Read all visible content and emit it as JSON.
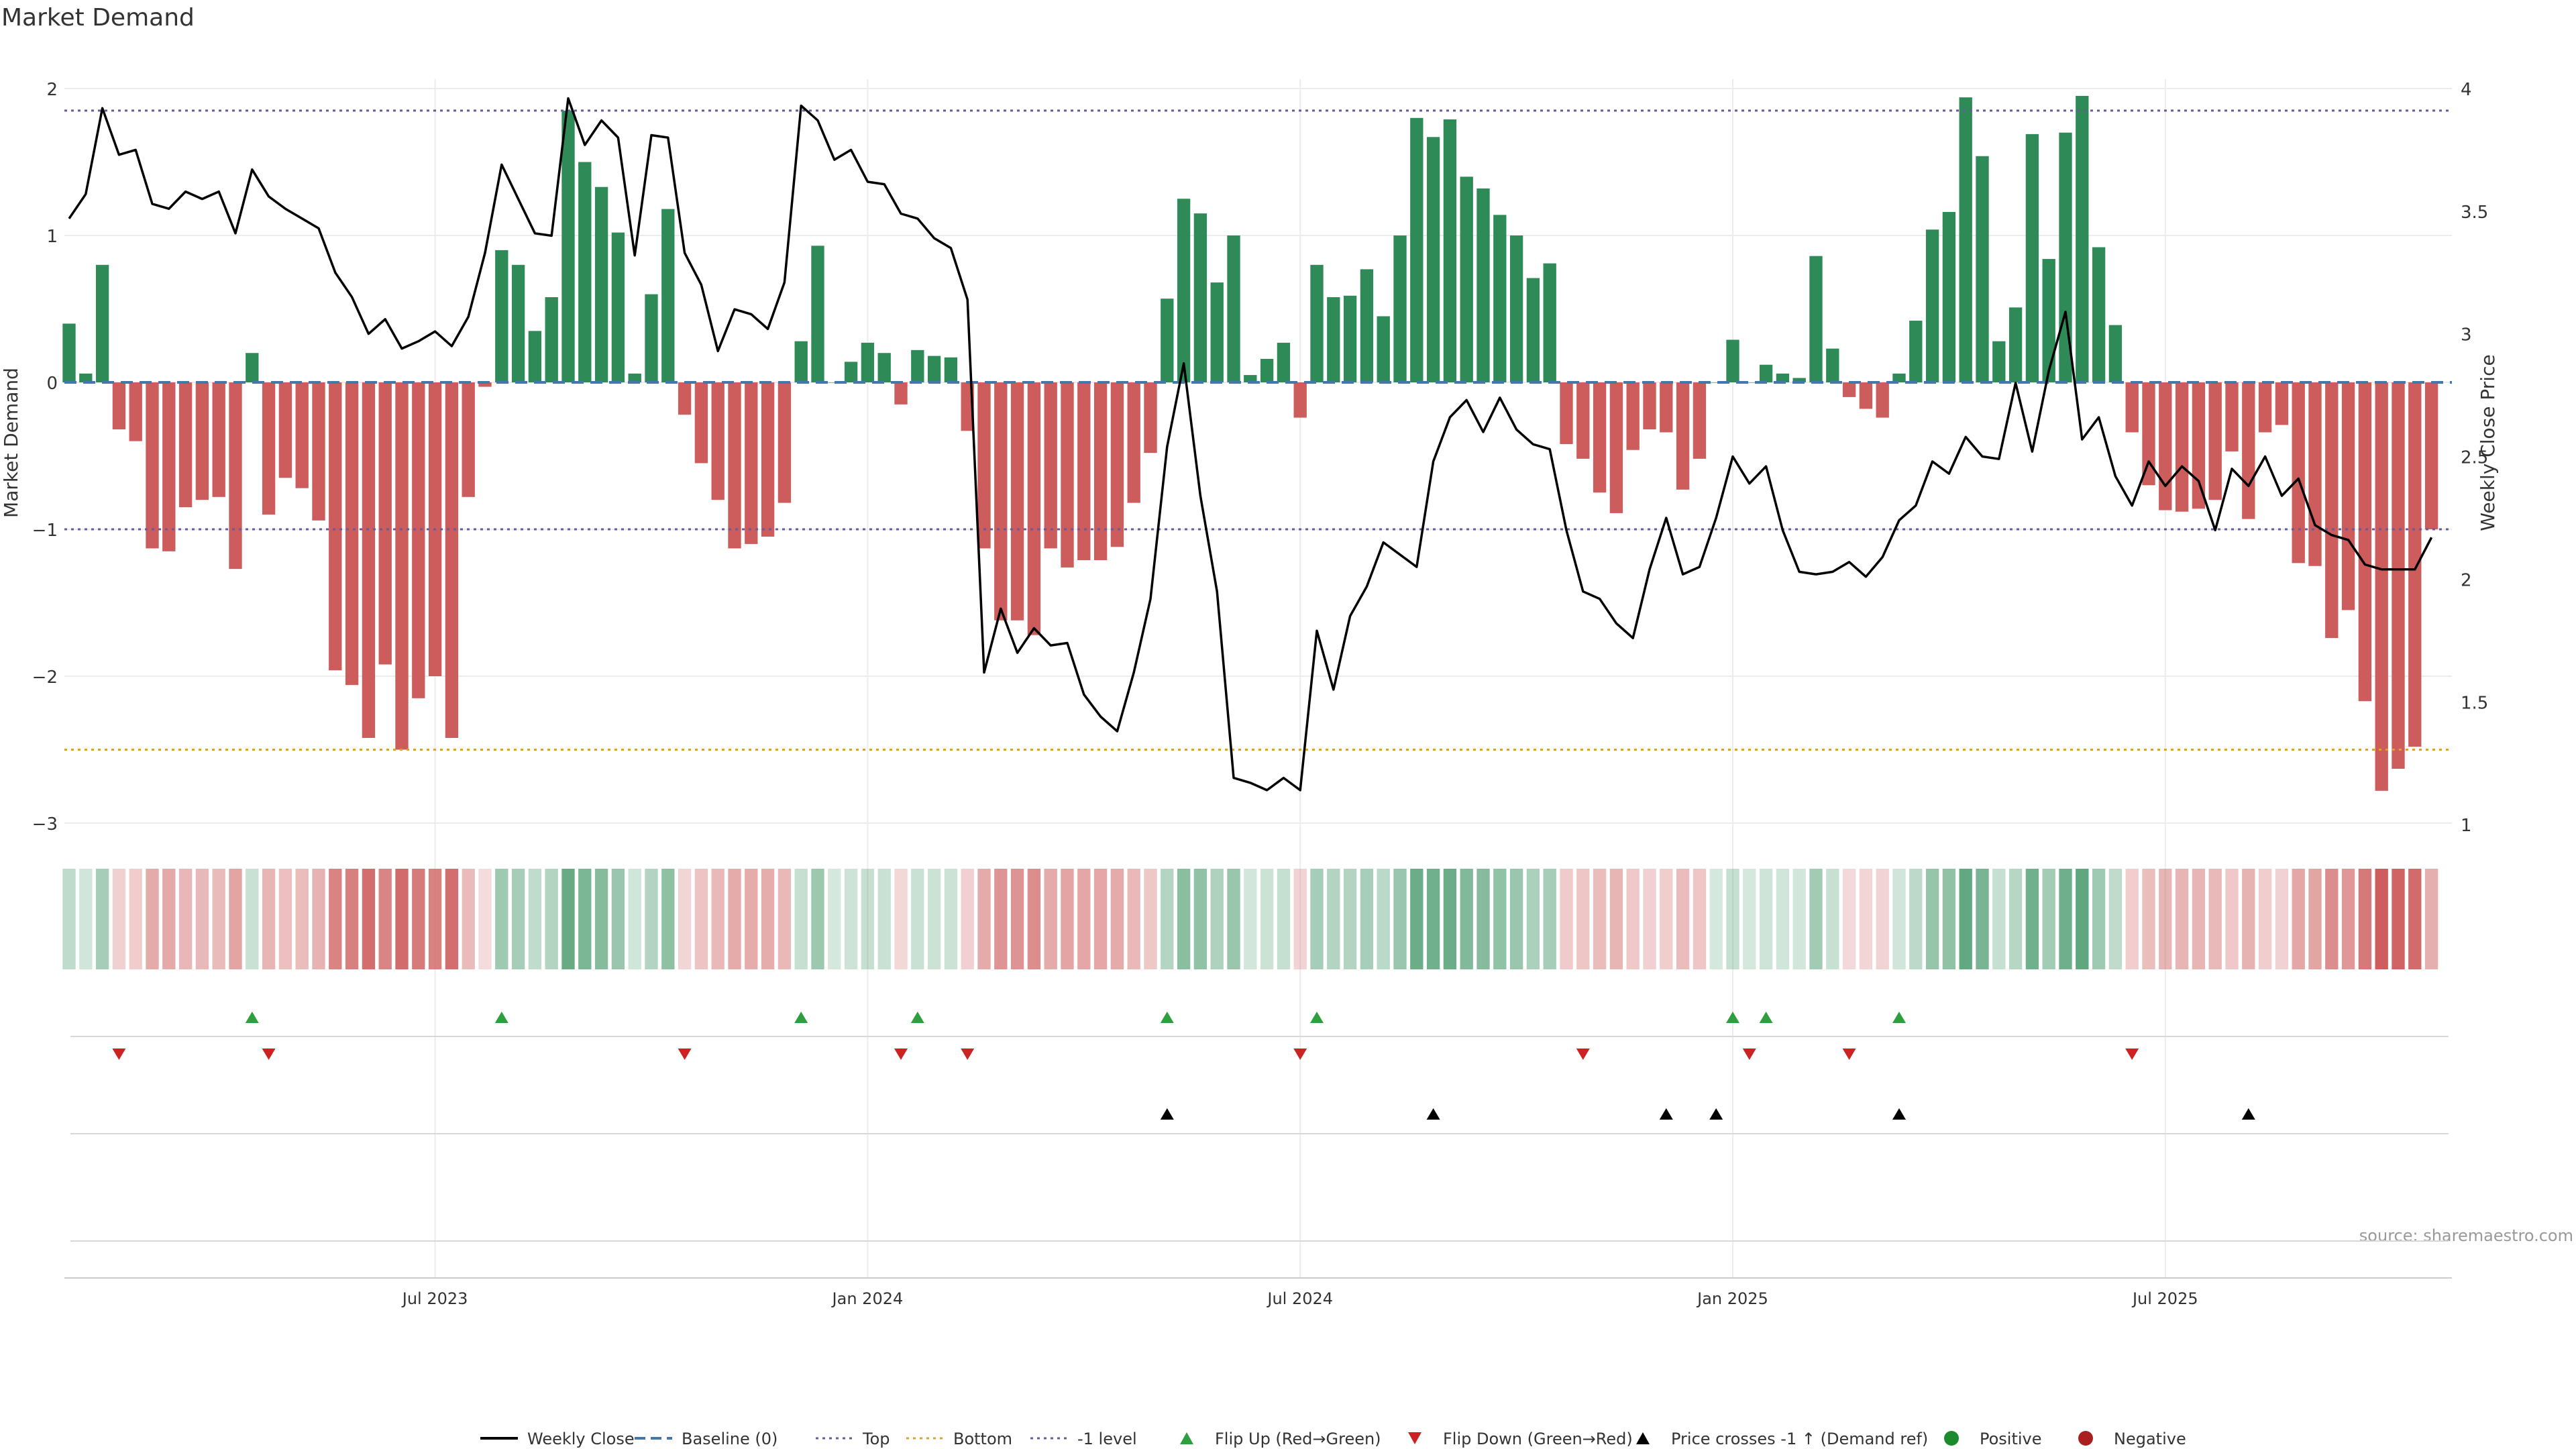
{
  "chart_data": {
    "type": "bar",
    "title": "Market Demand",
    "ylabel_left": "Market Demand",
    "ylabel_right": "Weekly Close Price",
    "ylim_left": [
      -3,
      2.2
    ],
    "ylim_right": [
      1,
      4
    ],
    "left_ticks": [
      2,
      1,
      0,
      -1,
      -2,
      -3
    ],
    "left_tick_labels": [
      "2",
      "1",
      "0",
      "−1",
      "−2",
      "−3"
    ],
    "right_ticks": [
      4,
      3.5,
      3,
      2.5,
      2,
      1.5,
      1
    ],
    "right_tick_labels": [
      "4",
      "3.5",
      "3",
      "2.5",
      "2",
      "1.5",
      "1"
    ],
    "x_tick_labels": [
      "Jul 2023",
      "Jan 2024",
      "Jul 2024",
      "Jan 2025",
      "Jul 2025"
    ],
    "x_tick_weeks": [
      22,
      48,
      74,
      100,
      126
    ],
    "reference_lines": {
      "top": 1.85,
      "baseline": 0,
      "minus_one": -1,
      "bottom": -2.5
    },
    "colors": {
      "positive": "#2e8b57",
      "negative": "#cd5c5c",
      "price": "#000000",
      "top": "#6a5a9a",
      "bottom": "#e0a030",
      "baseline": "#4477aa",
      "flip_up": "#2e9e3e",
      "flip_down": "#cc2222",
      "cross": "#000000",
      "pos_dot": "#1e8a2e",
      "neg_dot": "#aa2020"
    },
    "series": [
      {
        "name": "Market Demand",
        "values": [
          0.4,
          0.06,
          0.8,
          -0.32,
          -0.4,
          -1.13,
          -1.15,
          -0.85,
          -0.8,
          -0.78,
          -1.27,
          0.2,
          -0.9,
          -0.65,
          -0.72,
          -0.94,
          -1.96,
          -2.06,
          -2.42,
          -1.92,
          -2.5,
          -2.15,
          -2.0,
          -2.42,
          -0.78,
          -0.03,
          0.9,
          0.8,
          0.35,
          0.58,
          1.85,
          1.5,
          1.33,
          1.02,
          0.06,
          0.6,
          1.18,
          -0.22,
          -0.55,
          -0.8,
          -1.13,
          -1.1,
          -1.05,
          -0.82,
          0.28,
          0.93,
          0.0,
          0.14,
          0.27,
          0.2,
          -0.15,
          0.22,
          0.18,
          0.17,
          -0.33,
          -1.13,
          -1.62,
          -1.62,
          -1.72,
          -1.13,
          -1.26,
          -1.21,
          -1.21,
          -1.12,
          -0.82,
          -0.48,
          0.57,
          1.25,
          1.15,
          0.68,
          1.0,
          0.05,
          0.16,
          0.27,
          -0.24,
          0.8,
          0.58,
          0.59,
          0.77,
          0.45,
          1.0,
          1.8,
          1.67,
          1.79,
          1.4,
          1.32,
          1.14,
          1.0,
          0.71,
          0.81,
          -0.42,
          -0.52,
          -0.75,
          -0.89,
          -0.46,
          -0.32,
          -0.34,
          -0.73,
          -0.52,
          0.0,
          0.29,
          0.0,
          0.12,
          0.06,
          0.03,
          0.86,
          0.23,
          -0.1,
          -0.18,
          -0.24,
          0.06,
          0.42,
          1.04,
          1.16,
          1.94,
          1.54,
          0.28,
          0.51,
          1.69,
          0.84,
          1.7,
          1.95,
          0.92,
          0.39,
          -0.34,
          -0.7,
          -0.87,
          -0.88,
          -0.86,
          -0.8,
          -0.47,
          -0.93,
          -0.34,
          -0.29,
          -1.23,
          -1.25,
          -1.74,
          -1.55,
          -2.17,
          -2.78,
          -2.63,
          -2.48,
          -1.0
        ]
      },
      {
        "name": "Weekly Close",
        "values": [
          3.47,
          3.57,
          3.92,
          3.73,
          3.75,
          3.53,
          3.51,
          3.58,
          3.55,
          3.58,
          3.41,
          3.67,
          3.56,
          3.51,
          3.47,
          3.43,
          3.25,
          3.15,
          3.0,
          3.06,
          2.94,
          2.97,
          3.01,
          2.95,
          3.07,
          3.33,
          3.69,
          3.55,
          3.41,
          3.4,
          3.96,
          3.77,
          3.87,
          3.8,
          3.32,
          3.81,
          3.8,
          3.33,
          3.2,
          2.93,
          3.1,
          3.08,
          3.02,
          3.21,
          3.93,
          3.87,
          3.71,
          3.75,
          3.62,
          3.61,
          3.49,
          3.47,
          3.39,
          3.35,
          3.14,
          1.62,
          1.88,
          1.7,
          1.8,
          1.73,
          1.74,
          1.53,
          1.44,
          1.38,
          1.62,
          1.92,
          2.54,
          2.88,
          2.34,
          1.95,
          1.19,
          1.17,
          1.14,
          1.19,
          1.14,
          1.79,
          1.55,
          1.85,
          1.97,
          2.15,
          2.1,
          2.05,
          2.48,
          2.66,
          2.73,
          2.6,
          2.74,
          2.61,
          2.55,
          2.53,
          2.2,
          1.95,
          1.92,
          1.82,
          1.76,
          2.04,
          2.25,
          2.02,
          2.05,
          2.25,
          2.5,
          2.39,
          2.46,
          2.2,
          2.03,
          2.02,
          2.03,
          2.07,
          2.01,
          2.09,
          2.24,
          2.3,
          2.48,
          2.43,
          2.58,
          2.5,
          2.49,
          2.8,
          2.52,
          2.85,
          3.09,
          2.57,
          2.66,
          2.42,
          2.3,
          2.48,
          2.38,
          2.46,
          2.4,
          2.2,
          2.45,
          2.38,
          2.5,
          2.34,
          2.41,
          2.22,
          2.18,
          2.16,
          2.06,
          2.04,
          2.04,
          2.04,
          2.17
        ]
      }
    ],
    "flip_up_weeks": [
      11,
      26,
      44,
      51,
      66,
      75,
      100,
      102,
      110
    ],
    "flip_down_weeks": [
      3,
      12,
      37,
      50,
      54,
      74,
      91,
      101,
      107,
      124
    ],
    "price_cross_weeks": [
      66,
      82,
      96,
      99,
      110,
      131
    ],
    "legend": [
      "Weekly Close",
      "Baseline (0)",
      "Top",
      "Bottom",
      "-1 level",
      "Flip Up (Red→Green)",
      "Flip Down (Green→Red)",
      "Price crosses -1 ↑ (Demand ref)",
      "Positive",
      "Negative"
    ],
    "source": "source: sharemaestro.com"
  }
}
